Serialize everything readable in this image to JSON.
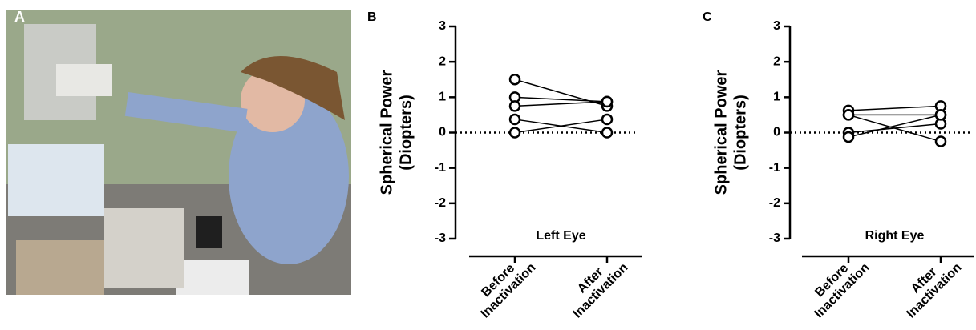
{
  "panel_labels": [
    "A",
    "B",
    "C"
  ],
  "chart_data": [
    {
      "type": "line",
      "subtitle": "Left Eye",
      "ylabel": [
        "Spherical Power",
        "(Diopters)"
      ],
      "categories": [
        "Before Inactivation",
        "After Inactivation"
      ],
      "series": [
        {
          "color": "#000000",
          "values": [
            1.5,
            0.75
          ]
        },
        {
          "color": "#000000",
          "values": [
            1.0,
            0.875
          ]
        },
        {
          "color": "#000000",
          "values": [
            0.75,
            0.875
          ]
        },
        {
          "color": "#000000",
          "values": [
            0.375,
            0
          ]
        },
        {
          "color": "#000000",
          "values": [
            0,
            0.375
          ]
        }
      ],
      "ylim": [
        -3,
        3
      ],
      "yticks": [
        -3,
        -2,
        -1,
        0,
        1,
        2,
        3
      ],
      "reference_line": 0
    },
    {
      "type": "line",
      "subtitle": "Right Eye",
      "ylabel": [
        "Spherical Power",
        "(Diopters)"
      ],
      "categories": [
        "Before Inactivation",
        "After Inactivation"
      ],
      "series": [
        {
          "color": "#000000",
          "values": [
            0.625,
            0.75
          ]
        },
        {
          "color": "#000000",
          "values": [
            0.5,
            0.5
          ]
        },
        {
          "color": "#000000",
          "values": [
            0.5,
            -0.25
          ]
        },
        {
          "color": "#000000",
          "values": [
            0,
            0.25
          ]
        },
        {
          "color": "#000000",
          "values": [
            -0.125,
            0.5
          ]
        }
      ],
      "ylim": [
        -3,
        3
      ],
      "yticks": [
        -3,
        -2,
        -1,
        0,
        1,
        2,
        3
      ],
      "reference_line": 0
    }
  ]
}
